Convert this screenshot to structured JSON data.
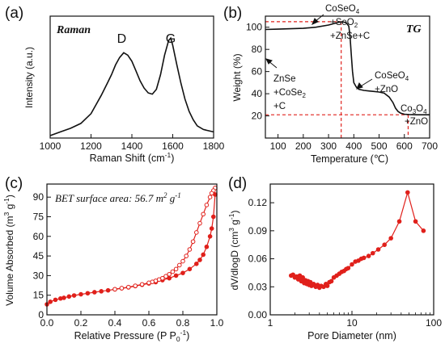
{
  "chart_data": [
    {
      "panel": "(a)",
      "type": "line",
      "title": "Raman",
      "xlabel": "Raman Shift (cm",
      "xlabel_sup": "-1",
      "xlabel_end": ")",
      "ylabel": "Intensity (a.u.)",
      "xlim": [
        1000,
        1800
      ],
      "xticks": [
        1000,
        1200,
        1400,
        1600,
        1800
      ],
      "yticks_shown": false,
      "grid": false,
      "annotations": [
        {
          "text": "D",
          "x": 1350
        },
        {
          "text": "G",
          "x": 1590
        }
      ],
      "series": [
        {
          "x": [
            1000,
            1050,
            1100,
            1150,
            1200,
            1250,
            1280,
            1300,
            1320,
            1340,
            1360,
            1380,
            1400,
            1420,
            1440,
            1460,
            1480,
            1500,
            1520,
            1540,
            1560,
            1580,
            1590,
            1600,
            1620,
            1640,
            1660,
            1680,
            1700,
            1720,
            1750,
            1800
          ],
          "y": [
            0.02,
            0.05,
            0.08,
            0.12,
            0.2,
            0.35,
            0.45,
            0.52,
            0.6,
            0.66,
            0.7,
            0.68,
            0.63,
            0.55,
            0.47,
            0.41,
            0.37,
            0.36,
            0.4,
            0.52,
            0.68,
            0.8,
            0.82,
            0.76,
            0.6,
            0.45,
            0.32,
            0.22,
            0.15,
            0.1,
            0.07,
            0.05
          ]
        }
      ]
    },
    {
      "panel": "(b)",
      "type": "line",
      "title": "TG",
      "xlabel": "Temperature",
      "xlabel_unit": "(℃)",
      "ylabel": "Weight (%)",
      "xlim": [
        50,
        700
      ],
      "ylim": [
        0,
        110
      ],
      "xticks": [
        100,
        200,
        300,
        400,
        500,
        600,
        700
      ],
      "yticks": [
        20,
        40,
        60,
        80,
        100
      ],
      "grid": false,
      "reference_lines": {
        "y": [
          105,
          21
        ],
        "x": [
          350,
          615
        ],
        "color": "#e0201b"
      },
      "annotations": [
        {
          "lines": [
            "ZnSe",
            "+CoSe",
            "+C"
          ],
          "sub_on_line2": "2"
        },
        {
          "lines": [
            "CoSeO",
            "+SeO",
            "+ZnSe+C"
          ],
          "sub_on_line1": "4",
          "sub_on_line2": "2"
        },
        {
          "lines": [
            "CoSeO",
            "+ZnO"
          ],
          "sub_on_line1": "4"
        },
        {
          "lines": [
            "Co",
            "O",
            "+ZnO"
          ],
          "subs": [
            "3",
            "4"
          ]
        }
      ],
      "series": [
        {
          "x": [
            50,
            100,
            150,
            200,
            250,
            300,
            340,
            355,
            370,
            380,
            385,
            390,
            395,
            400,
            410,
            420,
            440,
            460,
            480,
            500,
            520,
            540,
            555,
            565,
            575,
            585,
            600,
            620,
            650,
            700
          ],
          "y": [
            98,
            98.3,
            98.6,
            99,
            100,
            102,
            104.5,
            105,
            104,
            101,
            92,
            75,
            60,
            50,
            46,
            44,
            43,
            42.5,
            42,
            41.5,
            40.5,
            37,
            32,
            27,
            24,
            22.5,
            21.5,
            21.2,
            21,
            21
          ]
        }
      ]
    },
    {
      "panel": "(c)",
      "type": "line",
      "annotation": "BET surface area: 56.7 m",
      "annotation_sup": "2",
      "annotation_mid": " g",
      "annotation_sup2": "-1",
      "xlabel": "Relative Pressure (P P",
      "xlabel_sub": "0",
      "xlabel_sup": "-1",
      "xlabel_end": ")",
      "ylabel": "Volume Absorbed (m",
      "ylabel_sup": "3",
      "ylabel_mid": " g",
      "ylabel_sup2": "-1",
      "ylabel_end": ")",
      "xlim": [
        0.0,
        1.0
      ],
      "ylim": [
        0,
        100
      ],
      "xticks": [
        0.0,
        0.2,
        0.4,
        0.6,
        0.8,
        1.0
      ],
      "yticks": [
        0,
        15,
        30,
        45,
        60,
        75,
        90
      ],
      "grid": false,
      "series": [
        {
          "marker": "filled-circle",
          "x": [
            0.0,
            0.02,
            0.05,
            0.08,
            0.1,
            0.13,
            0.16,
            0.2,
            0.24,
            0.28,
            0.32,
            0.36,
            0.4,
            0.44,
            0.48,
            0.52,
            0.56,
            0.6,
            0.64,
            0.68,
            0.72,
            0.76,
            0.8,
            0.84,
            0.88,
            0.9,
            0.92,
            0.94,
            0.96,
            0.97,
            0.98,
            0.99
          ],
          "y": [
            8,
            10,
            11.5,
            12.5,
            13,
            14,
            14.8,
            15.7,
            16.5,
            17.3,
            18,
            18.7,
            19.5,
            20.3,
            21,
            22,
            23,
            24,
            25,
            26.5,
            28,
            30,
            32,
            35,
            39,
            42,
            46,
            52,
            60,
            66,
            75,
            92
          ]
        },
        {
          "marker": "open-circle",
          "x": [
            0.99,
            0.98,
            0.97,
            0.96,
            0.94,
            0.92,
            0.9,
            0.88,
            0.86,
            0.84,
            0.82,
            0.8,
            0.78,
            0.76,
            0.74,
            0.72,
            0.7,
            0.68,
            0.66,
            0.64,
            0.62,
            0.6,
            0.56,
            0.52,
            0.48,
            0.44,
            0.4
          ],
          "y": [
            97,
            95,
            93,
            90,
            84,
            77,
            70,
            63,
            56,
            50,
            45,
            41,
            38,
            35,
            33,
            31,
            29.5,
            28,
            27,
            26,
            25.2,
            24.5,
            23.3,
            22.2,
            21.2,
            20.4,
            19.6
          ]
        }
      ]
    },
    {
      "panel": "(d)",
      "type": "line",
      "xlabel": "Pore Diameter (nm)",
      "ylabel": "dV/dlogD (cm",
      "ylabel_sup": "3",
      "ylabel_mid": " g",
      "ylabel_sup2": "-1",
      "ylabel_end": ")",
      "xscale": "log",
      "xlim": [
        1,
        100
      ],
      "ylim": [
        0,
        0.14
      ],
      "xticks": [
        1,
        10,
        100
      ],
      "yticks": [
        0.0,
        0.03,
        0.06,
        0.09,
        0.12
      ],
      "grid": false,
      "series": [
        {
          "marker": "filled-circle",
          "x": [
            1.8,
            1.9,
            2.0,
            2.1,
            2.2,
            2.3,
            2.4,
            2.5,
            2.6,
            2.7,
            2.8,
            2.9,
            3.0,
            3.1,
            3.2,
            3.4,
            3.6,
            3.8,
            4.0,
            4.2,
            4.5,
            4.8,
            5.0,
            5.3,
            5.6,
            6.0,
            6.5,
            7.0,
            7.5,
            8.0,
            8.5,
            9.0,
            10,
            11,
            12,
            13,
            14,
            16,
            18,
            21,
            25,
            30,
            38,
            48,
            60,
            75
          ],
          "y": [
            0.042,
            0.043,
            0.04,
            0.041,
            0.038,
            0.042,
            0.036,
            0.04,
            0.034,
            0.037,
            0.033,
            0.036,
            0.032,
            0.035,
            0.031,
            0.033,
            0.03,
            0.032,
            0.029,
            0.031,
            0.03,
            0.033,
            0.031,
            0.035,
            0.036,
            0.04,
            0.042,
            0.044,
            0.046,
            0.047,
            0.049,
            0.05,
            0.054,
            0.057,
            0.058,
            0.06,
            0.061,
            0.063,
            0.066,
            0.07,
            0.075,
            0.082,
            0.1,
            0.131,
            0.1,
            0.09
          ]
        }
      ]
    }
  ]
}
